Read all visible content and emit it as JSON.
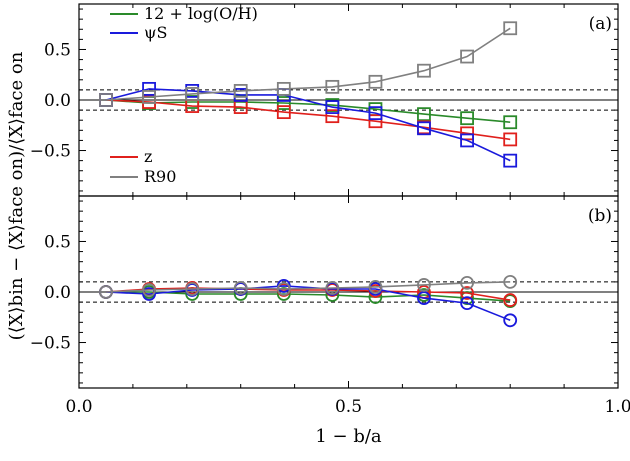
{
  "chart_data": {
    "type": "line",
    "x_values": [
      0.05,
      0.13,
      0.21,
      0.3,
      0.38,
      0.47,
      0.55,
      0.64,
      0.72,
      0.8
    ],
    "xlim": [
      0.0,
      1.0
    ],
    "ylim": [
      -0.95,
      0.95
    ],
    "x_ticks": [
      0.0,
      0.5,
      1.0
    ],
    "x_tick_labels": [
      "0.0",
      "0.5",
      "1.0"
    ],
    "y_ticks": [
      0.5,
      0.0,
      -0.5
    ],
    "y_tick_labels": [
      "0.5",
      "0.0",
      "−0.5"
    ],
    "xlabel": "1 − b/a",
    "ylabel": "(⟨X⟩bin − ⟨X⟩face on)/⟨X⟩face on",
    "hlines": {
      "solid": 0.0,
      "dashed": [
        0.1,
        -0.1
      ]
    },
    "legend": [
      {
        "label": "12 + log(O/H)",
        "color": "#2a8a2a"
      },
      {
        "label": "ψS",
        "color": "#1a1adc"
      },
      {
        "label": "z",
        "color": "#e0201c"
      },
      {
        "label": "R90",
        "color": "#808080"
      }
    ],
    "panels": [
      {
        "label": "(a)",
        "marker": "square",
        "series": [
          {
            "name": "12 + log(O/H)",
            "color": "#2a8a2a",
            "values": [
              0.0,
              -0.03,
              -0.02,
              -0.02,
              -0.03,
              -0.05,
              -0.09,
              -0.14,
              -0.18,
              -0.22
            ]
          },
          {
            "name": "z",
            "color": "#e0201c",
            "values": [
              0.0,
              -0.02,
              -0.06,
              -0.07,
              -0.12,
              -0.16,
              -0.21,
              -0.27,
              -0.33,
              -0.39
            ]
          },
          {
            "name": "ψS",
            "color": "#1a1adc",
            "values": [
              0.0,
              0.11,
              0.09,
              0.05,
              0.05,
              -0.07,
              -0.13,
              -0.28,
              -0.4,
              -0.6
            ]
          },
          {
            "name": "R90",
            "color": "#808080",
            "values": [
              0.0,
              0.03,
              0.06,
              0.09,
              0.11,
              0.13,
              0.18,
              0.29,
              0.43,
              0.71
            ]
          }
        ]
      },
      {
        "label": "(b)",
        "marker": "circle",
        "series": [
          {
            "name": "12 + log(O/H)",
            "color": "#2a8a2a",
            "values": [
              0.0,
              0.0,
              -0.02,
              -0.02,
              -0.02,
              -0.03,
              -0.05,
              -0.03,
              -0.06,
              -0.09
            ]
          },
          {
            "name": "z",
            "color": "#e0201c",
            "values": [
              0.0,
              0.03,
              0.04,
              0.03,
              0.02,
              0.02,
              0.01,
              0.0,
              -0.01,
              -0.08
            ]
          },
          {
            "name": "ψS",
            "color": "#1a1adc",
            "values": [
              0.0,
              -0.02,
              0.02,
              0.03,
              0.06,
              0.03,
              0.03,
              -0.06,
              -0.11,
              -0.28
            ]
          },
          {
            "name": "R90",
            "color": "#808080",
            "values": [
              0.0,
              0.02,
              0.03,
              0.04,
              0.03,
              0.04,
              0.05,
              0.07,
              0.09,
              0.1
            ]
          }
        ]
      }
    ]
  }
}
